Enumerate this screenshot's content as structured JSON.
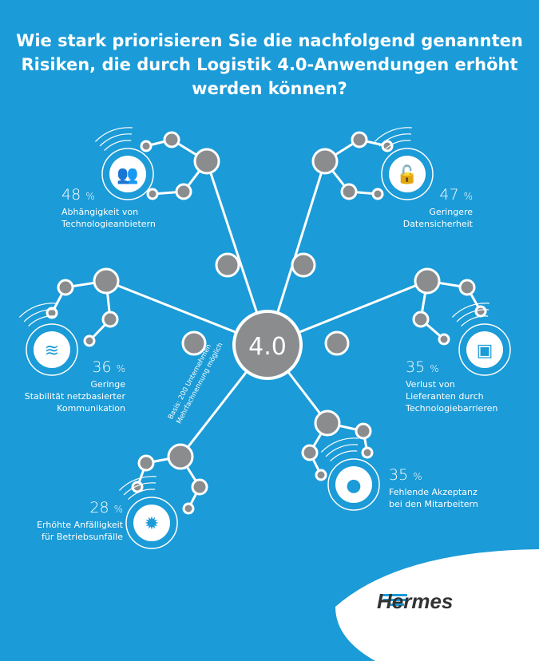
{
  "title": "Wie stark priorisieren Sie die nachfolgend genannten Risiken, die durch Logistik 4.0-Anwendungen erhöht werden können?",
  "center_label": "4.0",
  "note": {
    "line1": "Basis: 200 Unternehmen",
    "line2": "Mehrfachnennung möglich"
  },
  "items": [
    {
      "value": "48",
      "unit": "%",
      "label1": "Abhängigkeit von",
      "label2": "Technologieanbietern",
      "icon": "people-icon"
    },
    {
      "value": "47",
      "unit": "%",
      "label1": "Geringere",
      "label2": "Datensicherheit",
      "icon": "unlock-icon"
    },
    {
      "value": "36",
      "unit": "%",
      "label1": "Geringe",
      "label2": "Stabilität netzbasierter",
      "label3": "Kommunikation",
      "icon": "wifi-icon"
    },
    {
      "value": "35",
      "unit": "%",
      "label1": "Verlust von",
      "label2": "Lieferanten durch",
      "label3": "Technologiebarrieren",
      "icon": "box-icon"
    },
    {
      "value": "35",
      "unit": "%",
      "label1": "Fehlende Akzeptanz",
      "label2": "bei den Mitarbeitern",
      "icon": "person-icon"
    },
    {
      "value": "28",
      "unit": "%",
      "label1": "Erhöhte Anfälligkeit",
      "label2": "für Betriebsunfälle",
      "icon": "burst-icon"
    }
  ],
  "logo": "Hermes",
  "colors": {
    "background": "#1b9bd7",
    "node": "#8a8c8e",
    "line": "#ffffff"
  }
}
